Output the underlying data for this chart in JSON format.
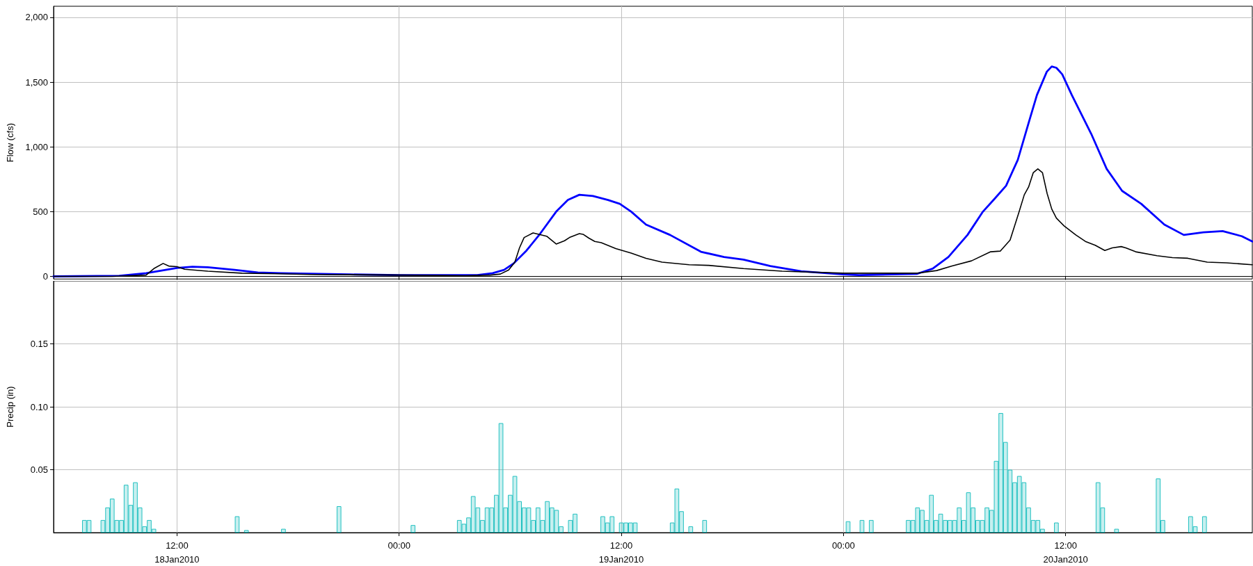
{
  "chart_data": [
    {
      "type": "line",
      "ylabel": "Flow (cfs)",
      "xlim": [
        "2010-01-18T05:20",
        "2010-01-20T22:05"
      ],
      "ylim": [
        -20,
        2085
      ],
      "xticks": [
        {
          "value": "2010-01-18T12:00",
          "label": null
        },
        {
          "value": "2010-01-19T00:00",
          "label": null
        },
        {
          "value": "2010-01-19T12:00",
          "label": null
        },
        {
          "value": "2010-01-20T00:00",
          "label": null
        },
        {
          "value": "2010-01-20T12:00",
          "label": null
        }
      ],
      "yticks": [
        0,
        500,
        {
          "value": 1000,
          "label": "1,000"
        },
        {
          "value": 1500,
          "label": "1,500"
        },
        {
          "value": 2000,
          "label": "2,000"
        }
      ],
      "tick_labels": "y",
      "grid": true,
      "marker": "none",
      "line_style": "solid",
      "series": [
        {
          "color": "#0000ff",
          "x": [
            "2010-01-18T05:20",
            "2010-01-18T08:53",
            "2010-01-18T10:20",
            "2010-01-18T11:10",
            "2010-01-18T12:00",
            "2010-01-18T12:50",
            "2010-01-18T13:40",
            "2010-01-18T15:07",
            "2010-01-18T16:22",
            "2010-01-18T17:37",
            "2010-01-18T21:21",
            "2010-01-19T00:00",
            "2010-01-19T04:13",
            "2010-01-19T05:03",
            "2010-01-19T05:40",
            "2010-01-19T06:11",
            "2010-01-19T06:53",
            "2010-01-19T07:37",
            "2010-01-19T08:29",
            "2010-01-19T09:07",
            "2010-01-19T09:44",
            "2010-01-19T10:28",
            "2010-01-19T11:17",
            "2010-01-19T11:55",
            "2010-01-19T12:32",
            "2010-01-19T13:20",
            "2010-01-19T14:38",
            "2010-01-19T16:18",
            "2010-01-19T17:33",
            "2010-01-19T18:36",
            "2010-01-19T20:03",
            "2010-01-19T21:43",
            "2010-01-20T00:00",
            "2010-01-20T00:51",
            "2010-01-20T03:59",
            "2010-01-20T04:49",
            "2010-01-20T05:40",
            "2010-01-20T06:42",
            "2010-01-20T07:32",
            "2010-01-20T08:10",
            "2010-01-20T08:47",
            "2010-01-20T09:25",
            "2010-01-20T10:02",
            "2010-01-20T10:27",
            "2010-01-20T10:59",
            "2010-01-20T11:15",
            "2010-01-20T11:30",
            "2010-01-20T11:49",
            "2010-01-20T12:20",
            "2010-01-20T13:23",
            "2010-01-20T14:13",
            "2010-01-20T15:03",
            "2010-01-20T16:05",
            "2010-01-20T17:20",
            "2010-01-20T18:23",
            "2010-01-20T19:26",
            "2010-01-20T20:29",
            "2010-01-20T21:31",
            "2010-01-20T22:05"
          ],
          "values": [
            0,
            5,
            25,
            45,
            65,
            75,
            70,
            50,
            30,
            25,
            15,
            10,
            10,
            25,
            50,
            100,
            200,
            330,
            500,
            590,
            630,
            620,
            590,
            560,
            500,
            400,
            320,
            190,
            150,
            130,
            80,
            40,
            15,
            10,
            20,
            60,
            150,
            320,
            500,
            600,
            700,
            900,
            1200,
            1400,
            1580,
            1620,
            1610,
            1560,
            1400,
            1100,
            830,
            660,
            560,
            400,
            320,
            340,
            350,
            310,
            270
          ]
        },
        {
          "color": "#000000",
          "x": [
            "2010-01-18T05:20",
            "2010-01-18T08:30",
            "2010-01-18T10:20",
            "2010-01-18T10:45",
            "2010-01-18T11:15",
            "2010-01-18T11:33",
            "2010-01-18T12:00",
            "2010-01-18T12:25",
            "2010-01-18T13:40",
            "2010-01-18T15:30",
            "2010-01-18T17:37",
            "2010-01-18T19:15",
            "2010-01-19T00:00",
            "2010-01-19T03:35",
            "2010-01-19T04:56",
            "2010-01-19T05:28",
            "2010-01-19T05:55",
            "2010-01-19T06:15",
            "2010-01-19T06:30",
            "2010-01-19T06:45",
            "2010-01-19T07:14",
            "2010-01-19T07:58",
            "2010-01-19T08:29",
            "2010-01-19T08:56",
            "2010-01-19T09:12",
            "2010-01-19T09:44",
            "2010-01-19T09:56",
            "2010-01-19T10:15",
            "2010-01-19T10:34",
            "2010-01-19T10:55",
            "2010-01-19T11:42",
            "2010-01-19T12:32",
            "2010-01-19T13:20",
            "2010-01-19T14:12",
            "2010-01-19T15:40",
            "2010-01-19T16:43",
            "2010-01-19T18:36",
            "2010-01-19T20:41",
            "2010-01-20T00:00",
            "2010-01-20T03:59",
            "2010-01-20T05:02",
            "2010-01-20T05:52",
            "2010-01-20T06:55",
            "2010-01-20T07:57",
            "2010-01-20T08:28",
            "2010-01-20T09:00",
            "2010-01-20T09:28",
            "2010-01-20T09:46",
            "2010-01-20T10:00",
            "2010-01-20T10:15",
            "2010-01-20T10:30",
            "2010-01-20T10:45",
            "2010-01-20T11:00",
            "2010-01-20T11:15",
            "2010-01-20T11:30",
            "2010-01-20T11:55",
            "2010-01-20T12:33",
            "2010-01-20T13:04",
            "2010-01-20T13:36",
            "2010-01-20T14:07",
            "2010-01-20T14:31",
            "2010-01-20T15:00",
            "2010-01-20T15:15",
            "2010-01-20T15:47",
            "2010-01-20T16:56",
            "2010-01-20T17:46",
            "2010-01-20T18:36",
            "2010-01-20T19:39",
            "2010-01-20T20:41",
            "2010-01-20T22:05"
          ],
          "values": [
            0,
            0,
            10,
            60,
            100,
            80,
            75,
            55,
            40,
            25,
            20,
            15,
            10,
            5,
            10,
            18,
            50,
            110,
            220,
            300,
            335,
            310,
            250,
            275,
            300,
            330,
            325,
            295,
            270,
            260,
            215,
            180,
            140,
            110,
            90,
            85,
            60,
            40,
            25,
            25,
            45,
            80,
            120,
            190,
            195,
            280,
            490,
            630,
            690,
            800,
            830,
            800,
            640,
            520,
            450,
            390,
            320,
            270,
            240,
            200,
            220,
            230,
            220,
            190,
            160,
            145,
            140,
            110,
            105,
            90
          ]
        }
      ]
    },
    {
      "type": "bar",
      "ylabel": "Precip (in)",
      "xlim": [
        "2010-01-18T05:20",
        "2010-01-20T22:05"
      ],
      "ylim": [
        0,
        0.2
      ],
      "xticks": [
        {
          "value": "2010-01-18T12:00",
          "label": "12:00\n18Jan2010"
        },
        {
          "value": "2010-01-19T00:00",
          "label": "00:00"
        },
        {
          "value": "2010-01-19T12:00",
          "label": "12:00\n19Jan2010"
        },
        {
          "value": "2010-01-20T00:00",
          "label": "00:00"
        },
        {
          "value": "2010-01-20T12:00",
          "label": "12:00\n20Jan2010"
        }
      ],
      "yticks": [
        0.05,
        {
          "value": 0.1,
          "label": "0.10"
        },
        0.15
      ],
      "grid": true,
      "color": "#20c0c0",
      "x": [
        "2010-01-18T07:00",
        "2010-01-18T07:15",
        "2010-01-18T08:00",
        "2010-01-18T08:15",
        "2010-01-18T08:30",
        "2010-01-18T08:45",
        "2010-01-18T09:00",
        "2010-01-18T09:15",
        "2010-01-18T09:30",
        "2010-01-18T09:45",
        "2010-01-18T10:00",
        "2010-01-18T10:15",
        "2010-01-18T10:30",
        "2010-01-18T10:45",
        "2010-01-18T15:15",
        "2010-01-18T15:45",
        "2010-01-18T17:45",
        "2010-01-18T20:45",
        "2010-01-19T00:45",
        "2010-01-19T03:15",
        "2010-01-19T03:30",
        "2010-01-19T03:45",
        "2010-01-19T04:00",
        "2010-01-19T04:15",
        "2010-01-19T04:30",
        "2010-01-19T04:45",
        "2010-01-19T05:00",
        "2010-01-19T05:15",
        "2010-01-19T05:30",
        "2010-01-19T05:45",
        "2010-01-19T06:00",
        "2010-01-19T06:15",
        "2010-01-19T06:30",
        "2010-01-19T06:45",
        "2010-01-19T07:00",
        "2010-01-19T07:15",
        "2010-01-19T07:30",
        "2010-01-19T07:45",
        "2010-01-19T08:00",
        "2010-01-19T08:15",
        "2010-01-19T08:30",
        "2010-01-19T08:45",
        "2010-01-19T09:15",
        "2010-01-19T09:30",
        "2010-01-19T11:00",
        "2010-01-19T11:15",
        "2010-01-19T11:30",
        "2010-01-19T12:00",
        "2010-01-19T12:15",
        "2010-01-19T12:30",
        "2010-01-19T12:45",
        "2010-01-19T14:45",
        "2010-01-19T15:00",
        "2010-01-19T15:15",
        "2010-01-19T15:45",
        "2010-01-19T16:30",
        "2010-01-20T00:15",
        "2010-01-20T01:00",
        "2010-01-20T01:30",
        "2010-01-20T03:30",
        "2010-01-20T03:45",
        "2010-01-20T04:00",
        "2010-01-20T04:15",
        "2010-01-20T04:30",
        "2010-01-20T04:45",
        "2010-01-20T05:00",
        "2010-01-20T05:15",
        "2010-01-20T05:30",
        "2010-01-20T05:45",
        "2010-01-20T06:00",
        "2010-01-20T06:15",
        "2010-01-20T06:30",
        "2010-01-20T06:45",
        "2010-01-20T07:00",
        "2010-01-20T07:15",
        "2010-01-20T07:30",
        "2010-01-20T07:45",
        "2010-01-20T08:00",
        "2010-01-20T08:15",
        "2010-01-20T08:30",
        "2010-01-20T08:45",
        "2010-01-20T09:00",
        "2010-01-20T09:15",
        "2010-01-20T09:30",
        "2010-01-20T09:45",
        "2010-01-20T10:00",
        "2010-01-20T10:15",
        "2010-01-20T10:30",
        "2010-01-20T10:45",
        "2010-01-20T11:30",
        "2010-01-20T13:45",
        "2010-01-20T14:00",
        "2010-01-20T14:45",
        "2010-01-20T17:00",
        "2010-01-20T17:15",
        "2010-01-20T18:45",
        "2010-01-20T19:00",
        "2010-01-20T19:30"
      ],
      "values": [
        0.01,
        0.01,
        0.01,
        0.02,
        0.027,
        0.01,
        0.01,
        0.038,
        0.022,
        0.04,
        0.02,
        0.005,
        0.01,
        0.003,
        0.013,
        0.002,
        0.003,
        0.021,
        0.006,
        0.01,
        0.007,
        0.012,
        0.029,
        0.02,
        0.01,
        0.02,
        0.02,
        0.03,
        0.087,
        0.02,
        0.03,
        0.045,
        0.025,
        0.02,
        0.02,
        0.01,
        0.02,
        0.01,
        0.025,
        0.02,
        0.018,
        0.005,
        0.01,
        0.015,
        0.013,
        0.008,
        0.013,
        0.008,
        0.008,
        0.008,
        0.008,
        0.008,
        0.035,
        0.017,
        0.005,
        0.01,
        0.009,
        0.01,
        0.01,
        0.01,
        0.01,
        0.02,
        0.018,
        0.01,
        0.03,
        0.01,
        0.015,
        0.01,
        0.01,
        0.01,
        0.02,
        0.01,
        0.032,
        0.02,
        0.01,
        0.01,
        0.02,
        0.018,
        0.057,
        0.095,
        0.072,
        0.05,
        0.04,
        0.045,
        0.04,
        0.02,
        0.01,
        0.01,
        0.003,
        0.008,
        0.04,
        0.02,
        0.003,
        0.043,
        0.01,
        0.013,
        0.005,
        0.013
      ]
    }
  ]
}
